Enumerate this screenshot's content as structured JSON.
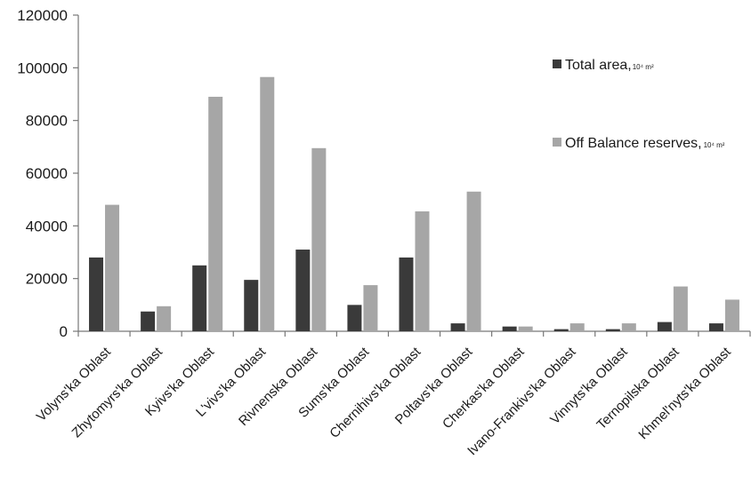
{
  "chart_data": {
    "type": "bar",
    "title": "",
    "xlabel": "",
    "ylabel": "",
    "ylim": [
      0,
      120000
    ],
    "yticks": [
      0,
      20000,
      40000,
      60000,
      80000,
      100000,
      120000
    ],
    "grid": false,
    "legend_position": "right",
    "categories": [
      "Volyns'ka Oblast",
      "Zhytomyrs'ka Oblast",
      "Kyivs'ka Oblast",
      "L'vivs'ka Oblast",
      "Rivnenska Oblast",
      "Sums'ka Oblast",
      "Chernihivs'ka  Oblast",
      "Poltavs'ka Oblast",
      "Cherkas'ka Oblast",
      "Ivano-Frankivs'ka Oblast",
      "Vinnyts'ka Oblast",
      "Ternopilska Oblast",
      "Khmel'nyts'ka  Oblast"
    ],
    "series": [
      {
        "name": "Total area,",
        "unit": "10⁴ m²",
        "color": "#3a3a3a",
        "values": [
          28000,
          7500,
          25000,
          19500,
          31000,
          10000,
          28000,
          3000,
          1800,
          800,
          800,
          3500,
          3000
        ]
      },
      {
        "name": "Off Balance reserves,",
        "unit": "10⁴ m²",
        "color": "#a6a6a6",
        "values": [
          48000,
          9500,
          89000,
          96500,
          69500,
          17500,
          45500,
          53000,
          1800,
          3000,
          3000,
          17000,
          12000
        ]
      }
    ]
  }
}
